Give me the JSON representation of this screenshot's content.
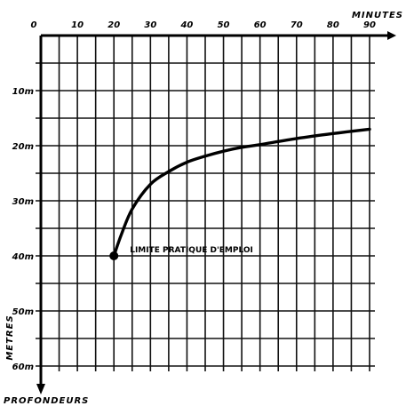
{
  "chart_data": {
    "type": "line",
    "x_axis": {
      "title": "MINUTES",
      "position": "top",
      "range": [
        0,
        90
      ],
      "ticks": [
        0,
        10,
        20,
        30,
        40,
        50,
        60,
        70,
        80,
        90
      ],
      "tick_labels": [
        "0",
        "10",
        "20",
        "30",
        "40",
        "50",
        "60",
        "70",
        "80",
        "90"
      ]
    },
    "y_axis": {
      "title": "METRES",
      "subtitle": "PROFONDEURS",
      "inverted": true,
      "range": [
        0,
        60
      ],
      "ticks": [
        10,
        20,
        30,
        40,
        50,
        60
      ],
      "tick_labels": [
        "10m",
        "20m",
        "30m",
        "40m",
        "50m",
        "60m"
      ]
    },
    "grid": true,
    "series": [
      {
        "x": [
          20,
          22,
          25,
          30,
          35,
          40,
          45,
          50,
          55,
          60,
          70,
          80,
          90
        ],
        "y": [
          40,
          36.2,
          31.5,
          27.0,
          24.7,
          23.0,
          21.9,
          21.0,
          20.3,
          19.8,
          18.7,
          17.8,
          17.0
        ]
      }
    ],
    "marker": {
      "x": 20,
      "y": 40
    },
    "annotations": [
      {
        "text": "LIMITE PRATIQUE D'EMPLOI",
        "x": 20,
        "y": 40
      }
    ]
  }
}
